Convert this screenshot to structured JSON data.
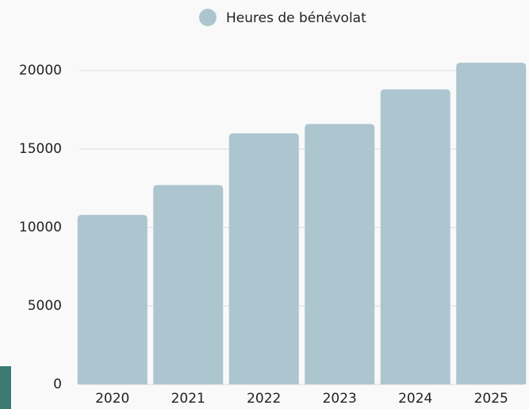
{
  "chart_data": {
    "type": "bar",
    "categories": [
      "2020",
      "2021",
      "2022",
      "2023",
      "2024",
      "2025"
    ],
    "series": [
      {
        "name": "Heures de bénévolat",
        "color": "#adc5cf",
        "values": [
          10800,
          12700,
          16000,
          16600,
          18800,
          20500
        ]
      }
    ],
    "ylim": [
      0,
      22000
    ],
    "yticks": [
      0,
      5000,
      10000,
      15000,
      20000
    ],
    "grid": true,
    "legend": "top"
  }
}
